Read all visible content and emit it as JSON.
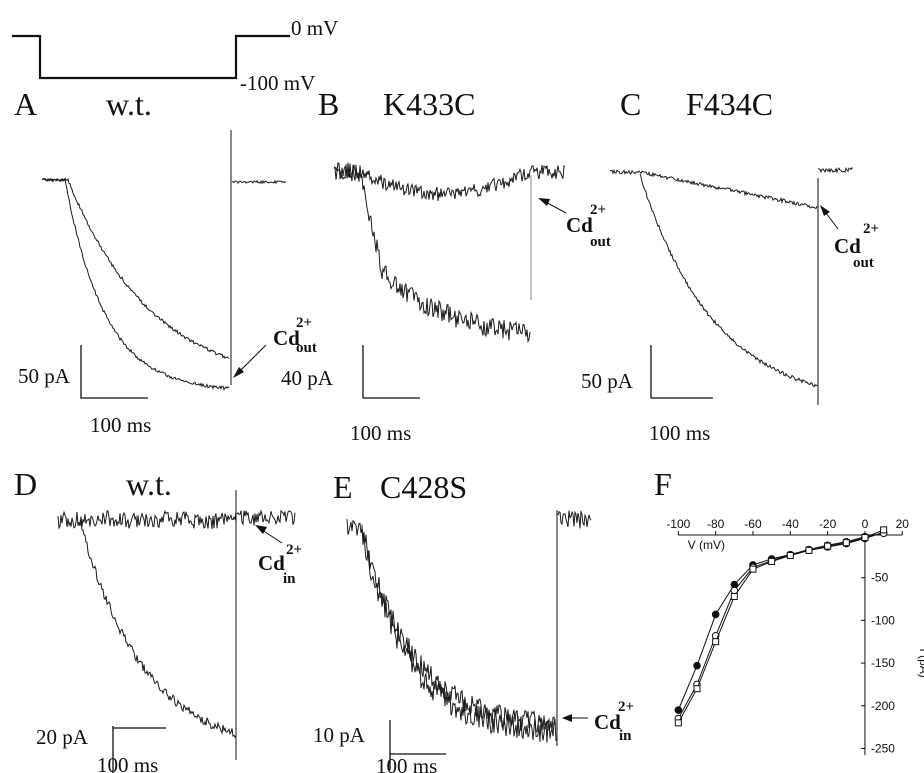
{
  "protocol": {
    "label_top": "0 mV",
    "label_bottom": "-100 mV"
  },
  "panels": [
    {
      "letter": "A",
      "title": "w.t.",
      "y_scale": "50 pA",
      "x_scale": "100 ms",
      "cd_label": "Cd",
      "cd_sup": "2+",
      "cd_sub": "out"
    },
    {
      "letter": "B",
      "title": "K433C",
      "y_scale": "40 pA",
      "x_scale": "100 ms",
      "cd_label": "Cd",
      "cd_sup": "2+",
      "cd_sub": "out"
    },
    {
      "letter": "C",
      "title": "F434C",
      "y_scale": "50 pA",
      "x_scale": "100 ms",
      "cd_label": "Cd",
      "cd_sup": "2+",
      "cd_sub": "out"
    },
    {
      "letter": "D",
      "title": "w.t.",
      "y_scale": "20 pA",
      "x_scale": "100 ms",
      "cd_label": "Cd",
      "cd_sup": "2+",
      "cd_sub": "in"
    },
    {
      "letter": "E",
      "title": "C428S",
      "y_scale": "10 pA",
      "x_scale": "100 ms",
      "cd_label": "Cd",
      "cd_sup": "2+",
      "cd_sub": "in"
    },
    {
      "letter": "F",
      "title": "",
      "y_scale": "",
      "x_scale": "",
      "cd_label": "",
      "cd_sup": "",
      "cd_sub": ""
    }
  ],
  "chart_data": [
    {
      "panel": "F",
      "type": "scatter",
      "xlabel": "V (mV)",
      "ylabel": "I (pA)",
      "xlim": [
        -105,
        22
      ],
      "ylim": [
        -260,
        0
      ],
      "x_ticks": [
        -100,
        -80,
        -60,
        -40,
        -20,
        0,
        20
      ],
      "x_tick_labels": [
        "-100",
        "-80",
        "-60",
        "-40",
        "-20",
        "0",
        "20"
      ],
      "y_ticks": [
        -50,
        -100,
        -150,
        -200,
        -250
      ],
      "y_tick_labels": [
        "-50",
        "-100",
        "-150",
        "-200",
        "-250"
      ],
      "series": [
        {
          "marker": "filled-circle",
          "x": [
            -100,
            -90,
            -80,
            -70,
            -60,
            -50,
            -40,
            -30,
            -20,
            -10,
            0,
            10
          ],
          "y": [
            -205,
            -153,
            -93,
            -58,
            -35,
            -28,
            -23,
            -18,
            -14,
            -10,
            -4,
            3
          ]
        },
        {
          "marker": "open-circle",
          "x": [
            -100,
            -90,
            -80,
            -70,
            -60,
            -50,
            -40,
            -30,
            -20,
            -10,
            0,
            10
          ],
          "y": [
            -215,
            -175,
            -118,
            -65,
            -38,
            -30,
            -23,
            -17,
            -12,
            -8,
            -2,
            2
          ]
        },
        {
          "marker": "open-square",
          "x": [
            -100,
            -90,
            -80,
            -70,
            -60,
            -50,
            -40,
            -30,
            -20,
            -10,
            0,
            10
          ],
          "y": [
            -220,
            -180,
            -125,
            -72,
            -40,
            -31,
            -24,
            -18,
            -13,
            -9,
            -3,
            6
          ]
        }
      ]
    }
  ]
}
